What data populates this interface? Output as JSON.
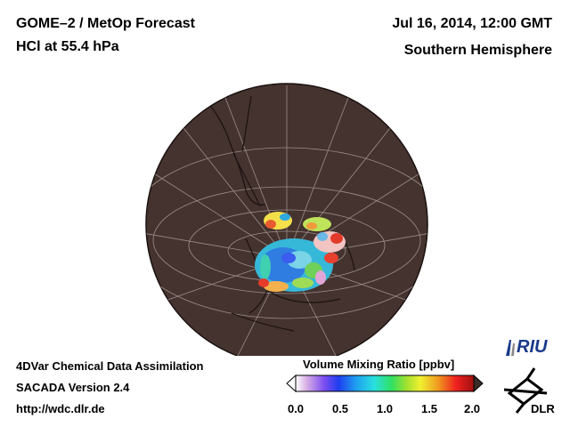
{
  "header": {
    "title_line1": "GOME–2 / MetOp Forecast",
    "title_line2": "HCl at 55.4 hPa",
    "datetime": "Jul 16, 2014, 12:00 GMT",
    "hemisphere": "Southern Hemisphere"
  },
  "footer": {
    "line1": "4DVar Chemical Data Assimilation",
    "line2": "SACADA Version 2.4",
    "line3": "http://wdc.dlr.de"
  },
  "legend": {
    "title": "Volume Mixing Ratio [ppbv]",
    "ticks": [
      "0.0",
      "0.5",
      "1.0",
      "1.5",
      "2.0"
    ],
    "range": [
      0.0,
      2.0
    ]
  },
  "logos": {
    "riu": "RIU",
    "dlr": "DLR"
  },
  "colors": {
    "globe_fill": "#45332f",
    "grid": "#9a8e8a",
    "coast": "#1a1210"
  }
}
